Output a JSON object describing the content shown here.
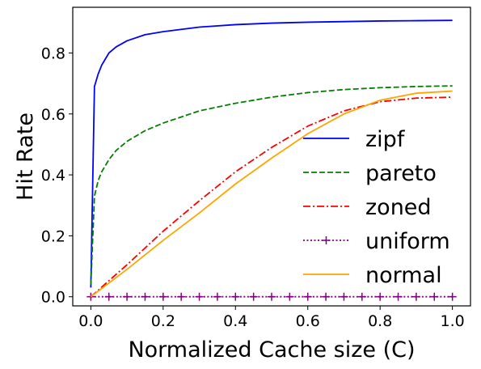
{
  "chart_data": {
    "type": "line",
    "title": "",
    "xlabel": "Normalized Cache size (C)",
    "ylabel": "Hit Rate",
    "xlim": [
      -0.05,
      1.05
    ],
    "ylim": [
      -0.03,
      0.95
    ],
    "xticks": [
      0.0,
      0.2,
      0.4,
      0.6,
      0.8,
      1.0
    ],
    "xtick_labels": [
      "0.0",
      "0.2",
      "0.4",
      "0.6",
      "0.8",
      "1.0"
    ],
    "yticks": [
      0.0,
      0.2,
      0.4,
      0.6,
      0.8
    ],
    "ytick_labels": [
      "0.0",
      "0.2",
      "0.4",
      "0.6",
      "0.8"
    ],
    "grid": false,
    "legend": "center-right",
    "series": [
      {
        "name": "zipf",
        "color": "#0000ff",
        "linestyle": "solid",
        "x": [
          0.0,
          0.01,
          0.02,
          0.03,
          0.04,
          0.05,
          0.07,
          0.1,
          0.15,
          0.2,
          0.3,
          0.4,
          0.5,
          0.6,
          0.7,
          0.8,
          0.9,
          1.0
        ],
        "y": [
          0.03,
          0.69,
          0.73,
          0.76,
          0.78,
          0.8,
          0.82,
          0.84,
          0.86,
          0.87,
          0.885,
          0.893,
          0.898,
          0.901,
          0.903,
          0.905,
          0.906,
          0.907
        ]
      },
      {
        "name": "pareto",
        "color": "#008000",
        "linestyle": "dashed",
        "x": [
          0.0,
          0.01,
          0.02,
          0.03,
          0.05,
          0.07,
          0.1,
          0.15,
          0.2,
          0.3,
          0.4,
          0.5,
          0.6,
          0.7,
          0.8,
          0.9,
          1.0
        ],
        "y": [
          0.04,
          0.33,
          0.38,
          0.41,
          0.45,
          0.48,
          0.51,
          0.545,
          0.57,
          0.61,
          0.635,
          0.655,
          0.67,
          0.68,
          0.686,
          0.69,
          0.692
        ]
      },
      {
        "name": "zoned",
        "color": "#ff0000",
        "linestyle": "dashdot",
        "x": [
          0.0,
          0.1,
          0.2,
          0.3,
          0.4,
          0.5,
          0.6,
          0.7,
          0.8,
          0.9,
          1.0
        ],
        "y": [
          0.0,
          0.105,
          0.215,
          0.315,
          0.41,
          0.49,
          0.56,
          0.61,
          0.64,
          0.652,
          0.655
        ]
      },
      {
        "name": "uniform",
        "color": "#800080",
        "linestyle": "dotted",
        "marker": "+",
        "x": [
          0.0,
          0.05,
          0.1,
          0.15,
          0.2,
          0.25,
          0.3,
          0.35,
          0.4,
          0.45,
          0.5,
          0.55,
          0.6,
          0.65,
          0.7,
          0.75,
          0.8,
          0.85,
          0.9,
          0.95,
          1.0
        ],
        "y": [
          0.0,
          0.0,
          0.0,
          0.0,
          0.0,
          0.0,
          0.0,
          0.0,
          0.0,
          0.0,
          0.0,
          0.0,
          0.0,
          0.0,
          0.0,
          0.0,
          0.0,
          0.0,
          0.0,
          0.0,
          0.0
        ]
      },
      {
        "name": "normal",
        "color": "#ffa500",
        "linestyle": "solid",
        "x": [
          0.0,
          0.1,
          0.2,
          0.3,
          0.4,
          0.5,
          0.6,
          0.7,
          0.8,
          0.9,
          1.0
        ],
        "y": [
          0.0,
          0.09,
          0.185,
          0.275,
          0.37,
          0.455,
          0.535,
          0.6,
          0.645,
          0.668,
          0.675
        ]
      }
    ]
  }
}
